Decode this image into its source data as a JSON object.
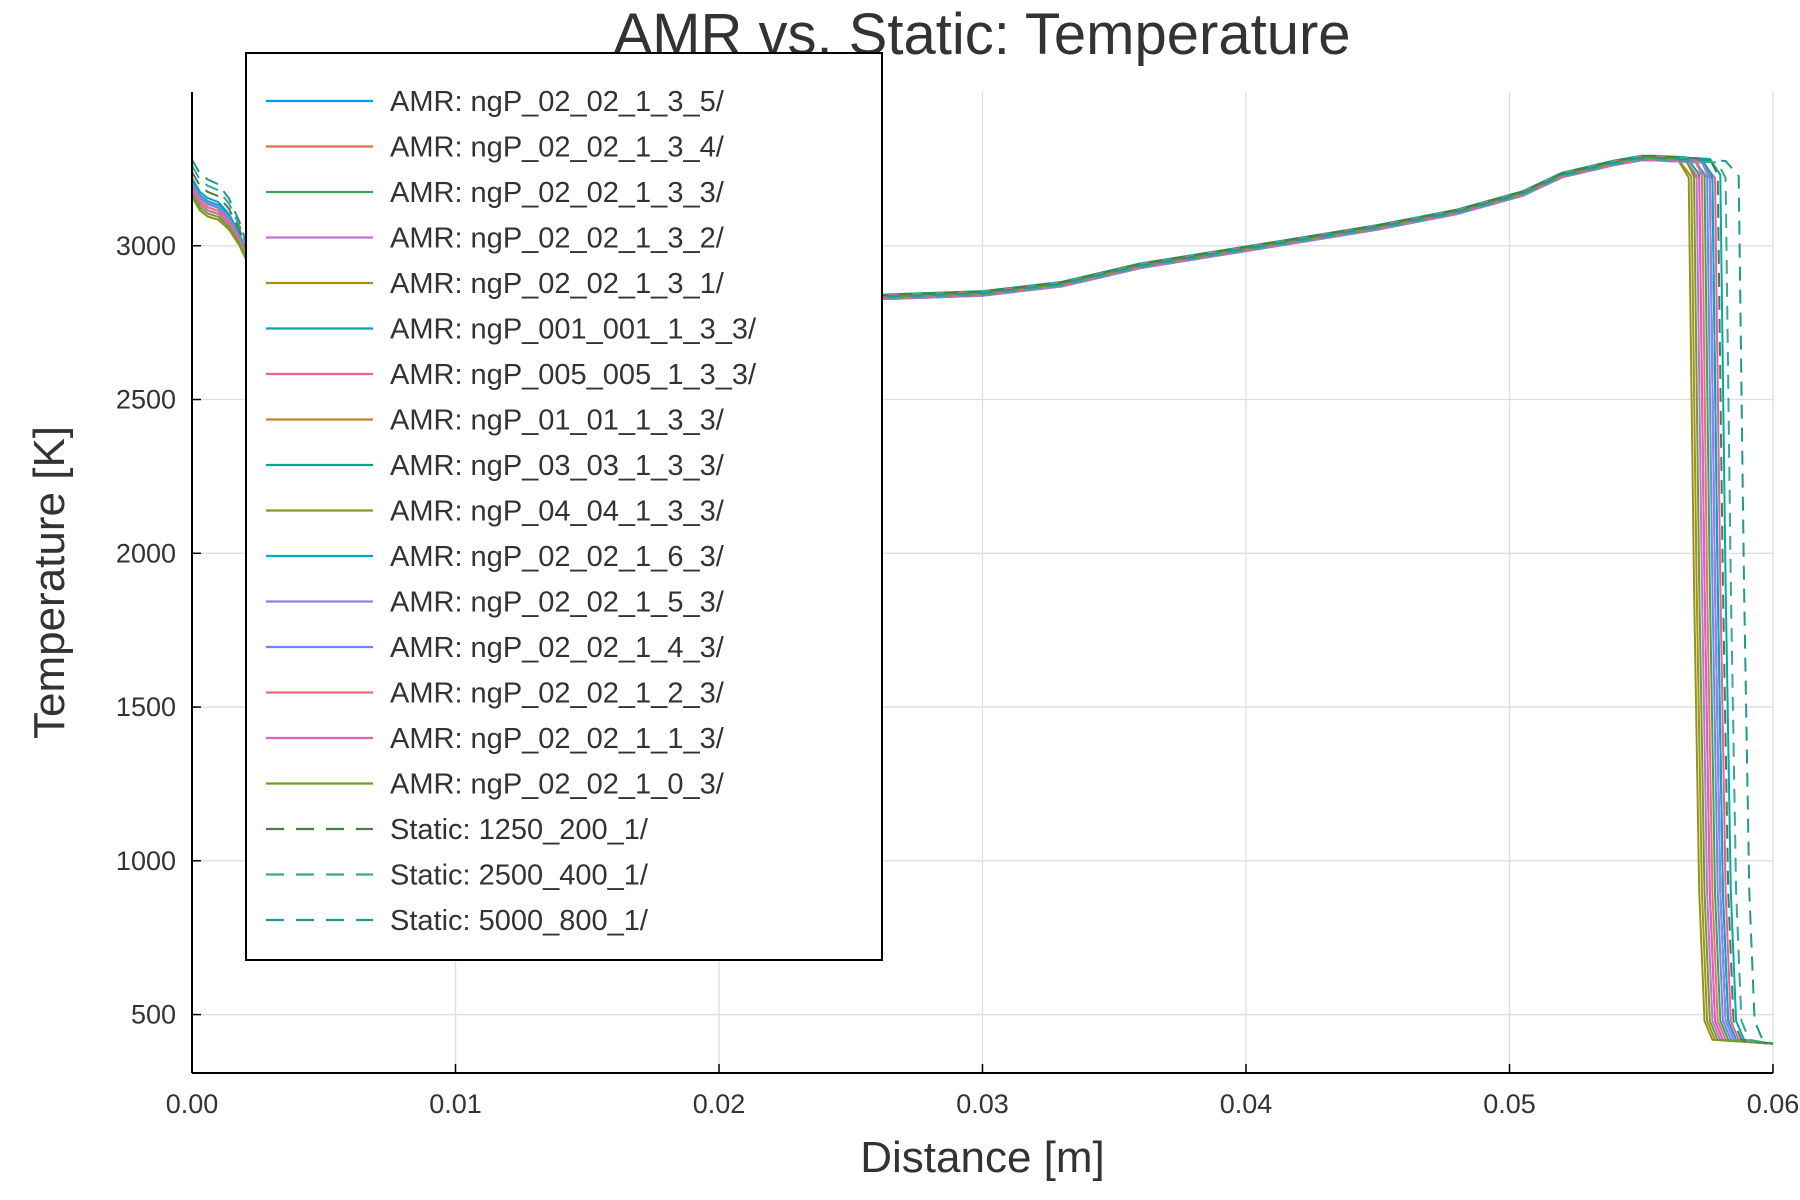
{
  "chart_data": {
    "type": "line",
    "title": "AMR vs. Static: Temperature",
    "xlabel": "Distance [m]",
    "ylabel": "Temperature [K]",
    "xlim": [
      0,
      0.06
    ],
    "ylim": [
      310,
      3500
    ],
    "x_ticks": [
      0,
      0.01,
      0.02,
      0.03,
      0.04,
      0.05,
      0.06
    ],
    "x_tick_labels": [
      "0.00",
      "0.01",
      "0.02",
      "0.03",
      "0.04",
      "0.05",
      "0.06"
    ],
    "y_ticks": [
      500,
      1000,
      1500,
      2000,
      2500,
      3000
    ],
    "y_tick_labels": [
      "500",
      "1000",
      "1500",
      "2000",
      "2500",
      "3000"
    ],
    "grid": true,
    "legend_position": "top-left",
    "series": [
      {
        "name": "AMR: ngP_02_02_1_3_5/",
        "color": "#009AFA",
        "dash": "solid",
        "start": 3150,
        "front": 0.0579
      },
      {
        "name": "AMR: ngP_02_02_1_3_4/",
        "color": "#E36F47",
        "dash": "solid",
        "start": 3140,
        "front": 0.0578
      },
      {
        "name": "AMR: ngP_02_02_1_3_3/",
        "color": "#3EA44E",
        "dash": "solid",
        "start": 3130,
        "front": 0.0576
      },
      {
        "name": "AMR: ngP_02_02_1_3_2/",
        "color": "#C371D2",
        "dash": "solid",
        "start": 3120,
        "front": 0.0573
      },
      {
        "name": "AMR: ngP_02_02_1_3_1/",
        "color": "#AC8E18",
        "dash": "solid",
        "start": 3100,
        "front": 0.0571
      },
      {
        "name": "AMR: ngP_001_001_1_3_3/",
        "color": "#00A9AD",
        "dash": "solid",
        "start": 3160,
        "front": 0.0582
      },
      {
        "name": "AMR: ngP_005_005_1_3_3/",
        "color": "#ED5E93",
        "dash": "solid",
        "start": 3150,
        "front": 0.058
      },
      {
        "name": "AMR: ngP_01_01_1_3_3/",
        "color": "#C68225",
        "dash": "solid",
        "start": 3140,
        "front": 0.0578
      },
      {
        "name": "AMR: ngP_03_03_1_3_3/",
        "color": "#00A98D",
        "dash": "solid",
        "start": 3120,
        "front": 0.0574
      },
      {
        "name": "AMR: ngP_04_04_1_3_3/",
        "color": "#8E971D",
        "dash": "solid",
        "start": 3100,
        "front": 0.057
      },
      {
        "name": "AMR: ngP_02_02_1_6_3/",
        "color": "#00A8CB",
        "dash": "solid",
        "start": 3150,
        "front": 0.0579
      },
      {
        "name": "AMR: ngP_02_02_1_5_3/",
        "color": "#9B7FE8",
        "dash": "solid",
        "start": 3145,
        "front": 0.0578
      },
      {
        "name": "AMR: ngP_02_02_1_4_3/",
        "color": "#618DF6",
        "dash": "solid",
        "start": 3140,
        "front": 0.0577
      },
      {
        "name": "AMR: ngP_02_02_1_2_3/",
        "color": "#F16C6E",
        "dash": "solid",
        "start": 3130,
        "front": 0.0575
      },
      {
        "name": "AMR: ngP_02_02_1_1_3/",
        "color": "#DC63BC",
        "dash": "solid",
        "start": 3120,
        "front": 0.0574
      },
      {
        "name": "AMR: ngP_02_02_1_0_3/",
        "color": "#6AA12A",
        "dash": "solid",
        "start": 3110,
        "front": 0.0572
      },
      {
        "name": "Static: 1250_200_1/",
        "color": "#4F7A4A",
        "dash": "dashed",
        "start": 3180,
        "front": 0.0581
      },
      {
        "name": "Static: 2500_400_1/",
        "color": "#3DA68F",
        "dash": "dashed",
        "start": 3200,
        "front": 0.0584
      },
      {
        "name": "Static: 5000_800_1/",
        "color": "#1E9A8E",
        "dash": "dashed",
        "start": 3220,
        "front": 0.0589
      }
    ]
  }
}
